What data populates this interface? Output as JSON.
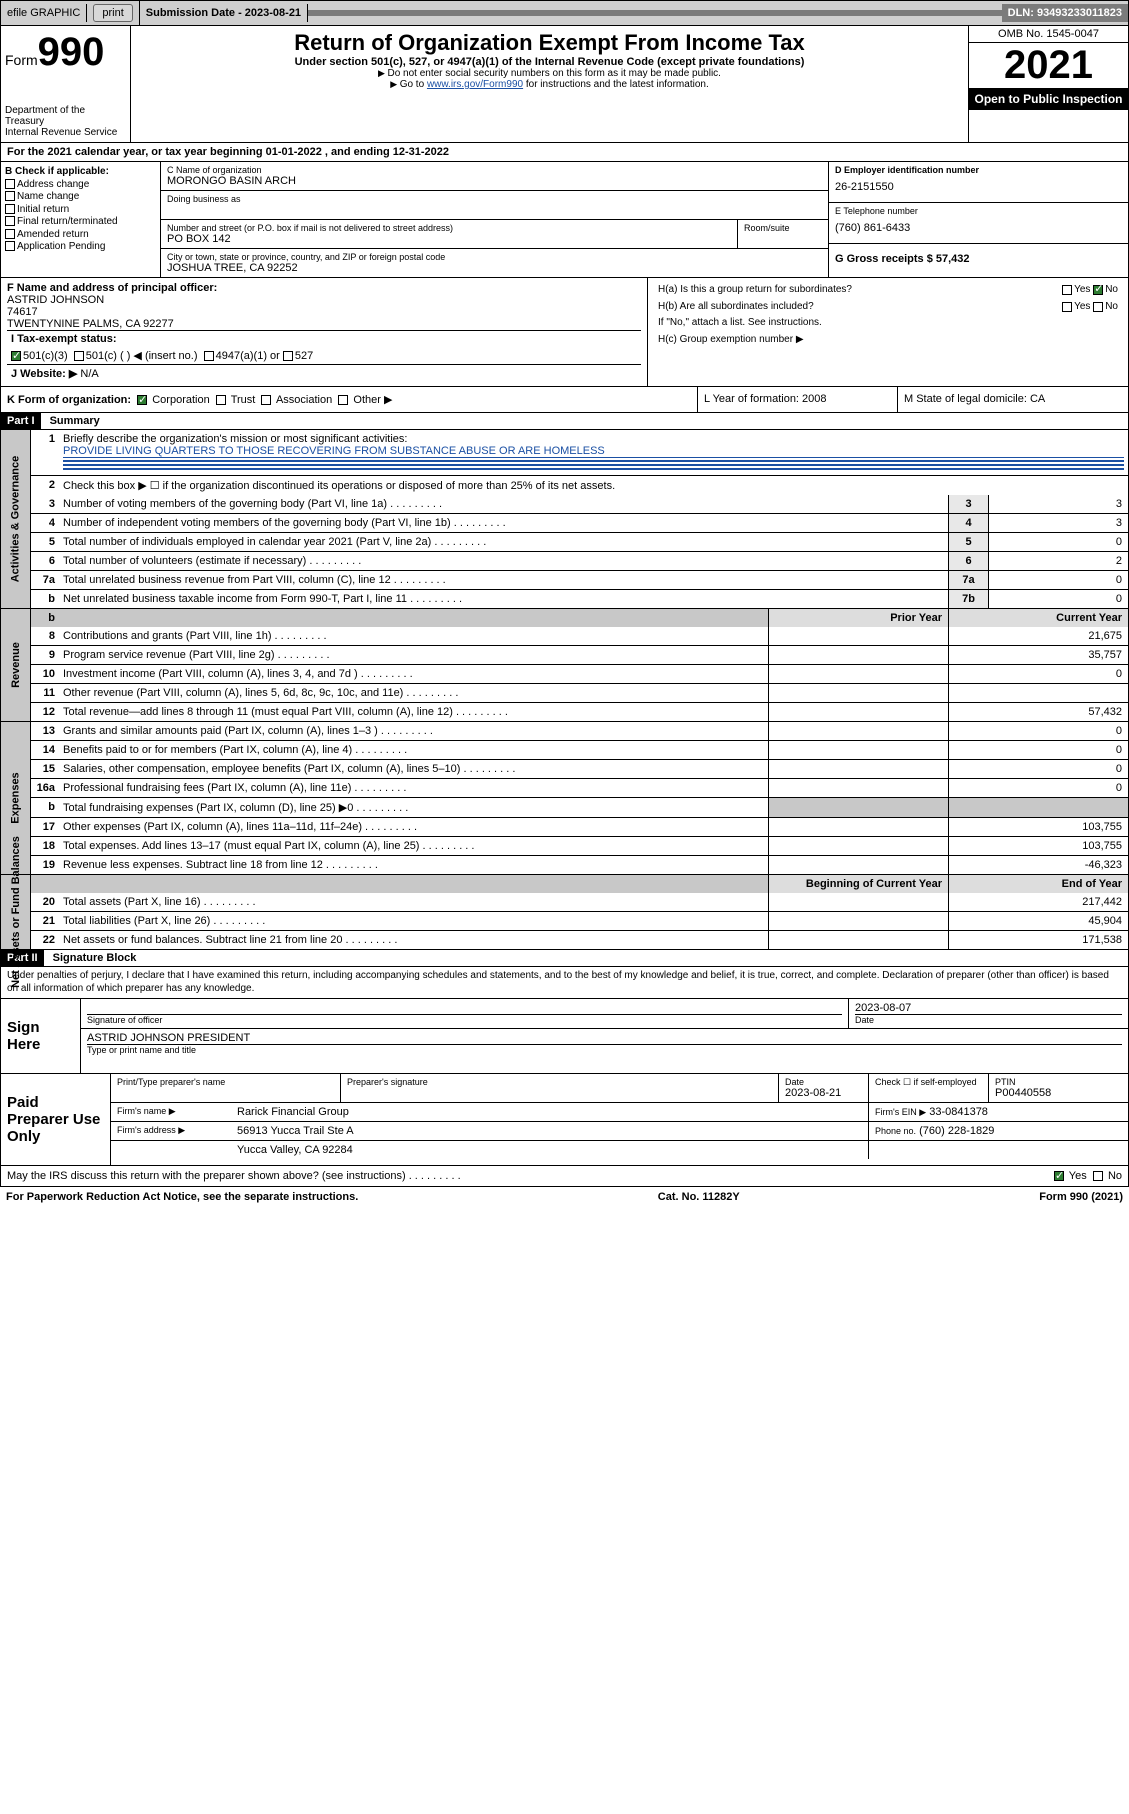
{
  "topbar": {
    "efile": "efile GRAPHIC",
    "print": "print",
    "subdate_label": "Submission Date - 2023-08-21",
    "dln": "DLN: 93493233011823"
  },
  "header": {
    "form_word": "Form",
    "form_num": "990",
    "dept": "Department of the Treasury",
    "irs": "Internal Revenue Service",
    "title": "Return of Organization Exempt From Income Tax",
    "subtitle": "Under section 501(c), 527, or 4947(a)(1) of the Internal Revenue Code (except private foundations)",
    "note1": "Do not enter social security numbers on this form as it may be made public.",
    "note2_pre": "Go to ",
    "note2_link": "www.irs.gov/Form990",
    "note2_post": " for instructions and the latest information.",
    "omb": "OMB No. 1545-0047",
    "year": "2021",
    "inspect": "Open to Public Inspection"
  },
  "taxyear": "For the 2021 calendar year, or tax year beginning 01-01-2022  , and ending 12-31-2022",
  "entity": {
    "B": "B Check if applicable:",
    "b_opts": [
      "Address change",
      "Name change",
      "Initial return",
      "Final return/terminated",
      "Amended return",
      "Application Pending"
    ],
    "C_label": "C Name of organization",
    "C_val": "MORONGO BASIN ARCH",
    "dba": "Doing business as",
    "addr_label": "Number and street (or P.O. box if mail is not delivered to street address)",
    "addr_val": "PO BOX 142",
    "room": "Room/suite",
    "city_label": "City or town, state or province, country, and ZIP or foreign postal code",
    "city_val": "JOSHUA TREE, CA  92252",
    "D_label": "D Employer identification number",
    "D_val": "26-2151550",
    "E_label": "E Telephone number",
    "E_val": "(760) 861-6433",
    "G": "G Gross receipts $ 57,432"
  },
  "officer": {
    "F_label": "F  Name and address of principal officer:",
    "name": "ASTRID JOHNSON",
    "addr1": "74617",
    "addr2": "TWENTYNINE PALMS, CA  92277",
    "Ha": "H(a)  Is this a group return for subordinates?",
    "Hb": "H(b)  Are all subordinates included?",
    "Hb_note": "If \"No,\" attach a list. See instructions.",
    "Hc": "H(c)  Group exemption number ▶",
    "yes": "Yes",
    "no": "No"
  },
  "status": {
    "I": "I  Tax-exempt status:",
    "opt1": "501(c)(3)",
    "opt2": "501(c) (  ) ◀ (insert no.)",
    "opt3": "4947(a)(1) or",
    "opt4": "527",
    "J": "J  Website: ▶",
    "J_val": "N/A"
  },
  "formorg": {
    "K": "K Form of organization:",
    "opts": [
      "Corporation",
      "Trust",
      "Association",
      "Other ▶"
    ],
    "L": "L Year of formation: 2008",
    "M": "M State of legal domicile: CA"
  },
  "part1": {
    "bar": "Part I",
    "title": "Summary",
    "l1": "Briefly describe the organization's mission or most significant activities:",
    "l1_val": "PROVIDE LIVING QUARTERS TO THOSE RECOVERING FROM SUBSTANCE ABUSE OR ARE HOMELESS",
    "l2": "Check this box ▶ ☐  if the organization discontinued its operations or disposed of more than 25% of its net assets.",
    "vlabel_ag": "Activities & Governance",
    "vlabel_rev": "Revenue",
    "vlabel_exp": "Expenses",
    "vlabel_na": "Net Assets or Fund Balances",
    "rows_ag": [
      {
        "n": "3",
        "t": "Number of voting members of the governing body (Part VI, line 1a)",
        "b": "3",
        "v": "3"
      },
      {
        "n": "4",
        "t": "Number of independent voting members of the governing body (Part VI, line 1b)",
        "b": "4",
        "v": "3"
      },
      {
        "n": "5",
        "t": "Total number of individuals employed in calendar year 2021 (Part V, line 2a)",
        "b": "5",
        "v": "0"
      },
      {
        "n": "6",
        "t": "Total number of volunteers (estimate if necessary)",
        "b": "6",
        "v": "2"
      },
      {
        "n": "7a",
        "t": "Total unrelated business revenue from Part VIII, column (C), line 12",
        "b": "7a",
        "v": "0"
      },
      {
        "n": "b",
        "t": "Net unrelated business taxable income from Form 990-T, Part I, line 11",
        "b": "7b",
        "v": "0"
      }
    ],
    "hdr_prior": "Prior Year",
    "hdr_curr": "Current Year",
    "rows_rev": [
      {
        "n": "8",
        "t": "Contributions and grants (Part VIII, line 1h)",
        "p": "",
        "c": "21,675"
      },
      {
        "n": "9",
        "t": "Program service revenue (Part VIII, line 2g)",
        "p": "",
        "c": "35,757"
      },
      {
        "n": "10",
        "t": "Investment income (Part VIII, column (A), lines 3, 4, and 7d )",
        "p": "",
        "c": "0"
      },
      {
        "n": "11",
        "t": "Other revenue (Part VIII, column (A), lines 5, 6d, 8c, 9c, 10c, and 11e)",
        "p": "",
        "c": ""
      },
      {
        "n": "12",
        "t": "Total revenue—add lines 8 through 11 (must equal Part VIII, column (A), line 12)",
        "p": "",
        "c": "57,432"
      }
    ],
    "rows_exp": [
      {
        "n": "13",
        "t": "Grants and similar amounts paid (Part IX, column (A), lines 1–3 )",
        "p": "",
        "c": "0"
      },
      {
        "n": "14",
        "t": "Benefits paid to or for members (Part IX, column (A), line 4)",
        "p": "",
        "c": "0"
      },
      {
        "n": "15",
        "t": "Salaries, other compensation, employee benefits (Part IX, column (A), lines 5–10)",
        "p": "",
        "c": "0"
      },
      {
        "n": "16a",
        "t": "Professional fundraising fees (Part IX, column (A), line 11e)",
        "p": "",
        "c": "0"
      },
      {
        "n": "b",
        "t": "Total fundraising expenses (Part IX, column (D), line 25) ▶0",
        "p": "—",
        "c": "—"
      },
      {
        "n": "17",
        "t": "Other expenses (Part IX, column (A), lines 11a–11d, 11f–24e)",
        "p": "",
        "c": "103,755"
      },
      {
        "n": "18",
        "t": "Total expenses. Add lines 13–17 (must equal Part IX, column (A), line 25)",
        "p": "",
        "c": "103,755"
      },
      {
        "n": "19",
        "t": "Revenue less expenses. Subtract line 18 from line 12",
        "p": "",
        "c": "-46,323"
      }
    ],
    "hdr_beg": "Beginning of Current Year",
    "hdr_end": "End of Year",
    "rows_na": [
      {
        "n": "20",
        "t": "Total assets (Part X, line 16)",
        "p": "",
        "c": "217,442"
      },
      {
        "n": "21",
        "t": "Total liabilities (Part X, line 26)",
        "p": "",
        "c": "45,904"
      },
      {
        "n": "22",
        "t": "Net assets or fund balances. Subtract line 21 from line 20",
        "p": "",
        "c": "171,538"
      }
    ]
  },
  "part2": {
    "bar": "Part II",
    "title": "Signature Block",
    "decl": "Under penalties of perjury, I declare that I have examined this return, including accompanying schedules and statements, and to the best of my knowledge and belief, it is true, correct, and complete. Declaration of preparer (other than officer) is based on all information of which preparer has any knowledge.",
    "sign": "Sign Here",
    "sigoff": "Signature of officer",
    "date": "Date",
    "sigdate": "2023-08-07",
    "name": "ASTRID JOHNSON  PRESIDENT",
    "typed": "Type or print name and title",
    "paid": "Paid Preparer Use Only",
    "p_name": "Print/Type preparer's name",
    "p_sig": "Preparer's signature",
    "p_date": "Date",
    "p_dateval": "2023-08-21",
    "p_check": "Check ☐ if self-employed",
    "p_ptin": "PTIN",
    "p_ptinval": "P00440558",
    "firm_name_l": "Firm's name    ▶",
    "firm_name": "Rarick Financial Group",
    "firm_ein_l": "Firm's EIN ▶",
    "firm_ein": "33-0841378",
    "firm_addr_l": "Firm's address ▶",
    "firm_addr1": "56913 Yucca Trail Ste A",
    "firm_addr2": "Yucca Valley, CA  92284",
    "firm_phone_l": "Phone no.",
    "firm_phone": "(760) 228-1829",
    "may": "May the IRS discuss this return with the preparer shown above? (see instructions)",
    "yes": "Yes",
    "no": "No"
  },
  "footer": {
    "l": "For Paperwork Reduction Act Notice, see the separate instructions.",
    "m": "Cat. No. 11282Y",
    "r": "Form 990 (2021)"
  }
}
